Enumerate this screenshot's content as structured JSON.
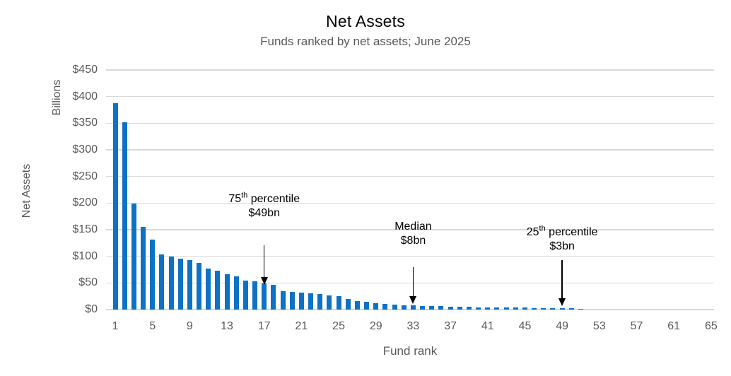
{
  "chart_data": {
    "type": "bar",
    "title": "Net Assets",
    "subtitle": "Funds ranked by net assets; June 2025",
    "xlabel": "Fund rank",
    "ylabel": "Net Assets",
    "ylabel_units": "Billions",
    "ylim": [
      0,
      450
    ],
    "xlim": [
      1,
      65
    ],
    "grid": "horizontal",
    "legend": "none",
    "bar_color": "#0E72C4",
    "gridline_color": "#D9D9D9",
    "axis_text_color": "#595959",
    "title_color": "#000000",
    "ytick_values": [
      0,
      50,
      100,
      150,
      200,
      250,
      300,
      350,
      400,
      450
    ],
    "ytick_labels": [
      "$0",
      "$50",
      "$100",
      "$150",
      "$200",
      "$250",
      "$300",
      "$350",
      "$400",
      "$450"
    ],
    "xtick_labels": [
      1,
      5,
      9,
      13,
      17,
      21,
      25,
      29,
      33,
      37,
      41,
      45,
      49,
      53,
      57,
      61,
      65
    ],
    "categories": [
      1,
      2,
      3,
      4,
      5,
      6,
      7,
      8,
      9,
      10,
      11,
      12,
      13,
      14,
      15,
      16,
      17,
      18,
      19,
      20,
      21,
      22,
      23,
      24,
      25,
      26,
      27,
      28,
      29,
      30,
      31,
      32,
      33,
      34,
      35,
      36,
      37,
      38,
      39,
      40,
      41,
      42,
      43,
      44,
      45,
      46,
      47,
      48,
      49,
      50,
      51
    ],
    "values": [
      388,
      352,
      199,
      155,
      132,
      104,
      99,
      95,
      93,
      88,
      77,
      73,
      67,
      62,
      55,
      53,
      49,
      47,
      35,
      33,
      32,
      31,
      29,
      27,
      25,
      20,
      16,
      14,
      11.5,
      10,
      9,
      8.5,
      8,
      7,
      6.5,
      6,
      5.5,
      5,
      5,
      4.5,
      4.5,
      4,
      4,
      3.5,
      3.5,
      3,
      3,
      3,
      3,
      2.5,
      2
    ],
    "annotations": [
      {
        "label_prefix": "75",
        "label_sup": "th",
        "label_suffix": " percentile",
        "value_label": "$49bn",
        "rank": 17
      },
      {
        "label_prefix": "Median",
        "label_sup": "",
        "label_suffix": "",
        "value_label": "$8bn",
        "rank": 33
      },
      {
        "label_prefix": "25",
        "label_sup": "th",
        "label_suffix": " percentile",
        "value_label": "$3bn",
        "rank": 49
      }
    ]
  }
}
